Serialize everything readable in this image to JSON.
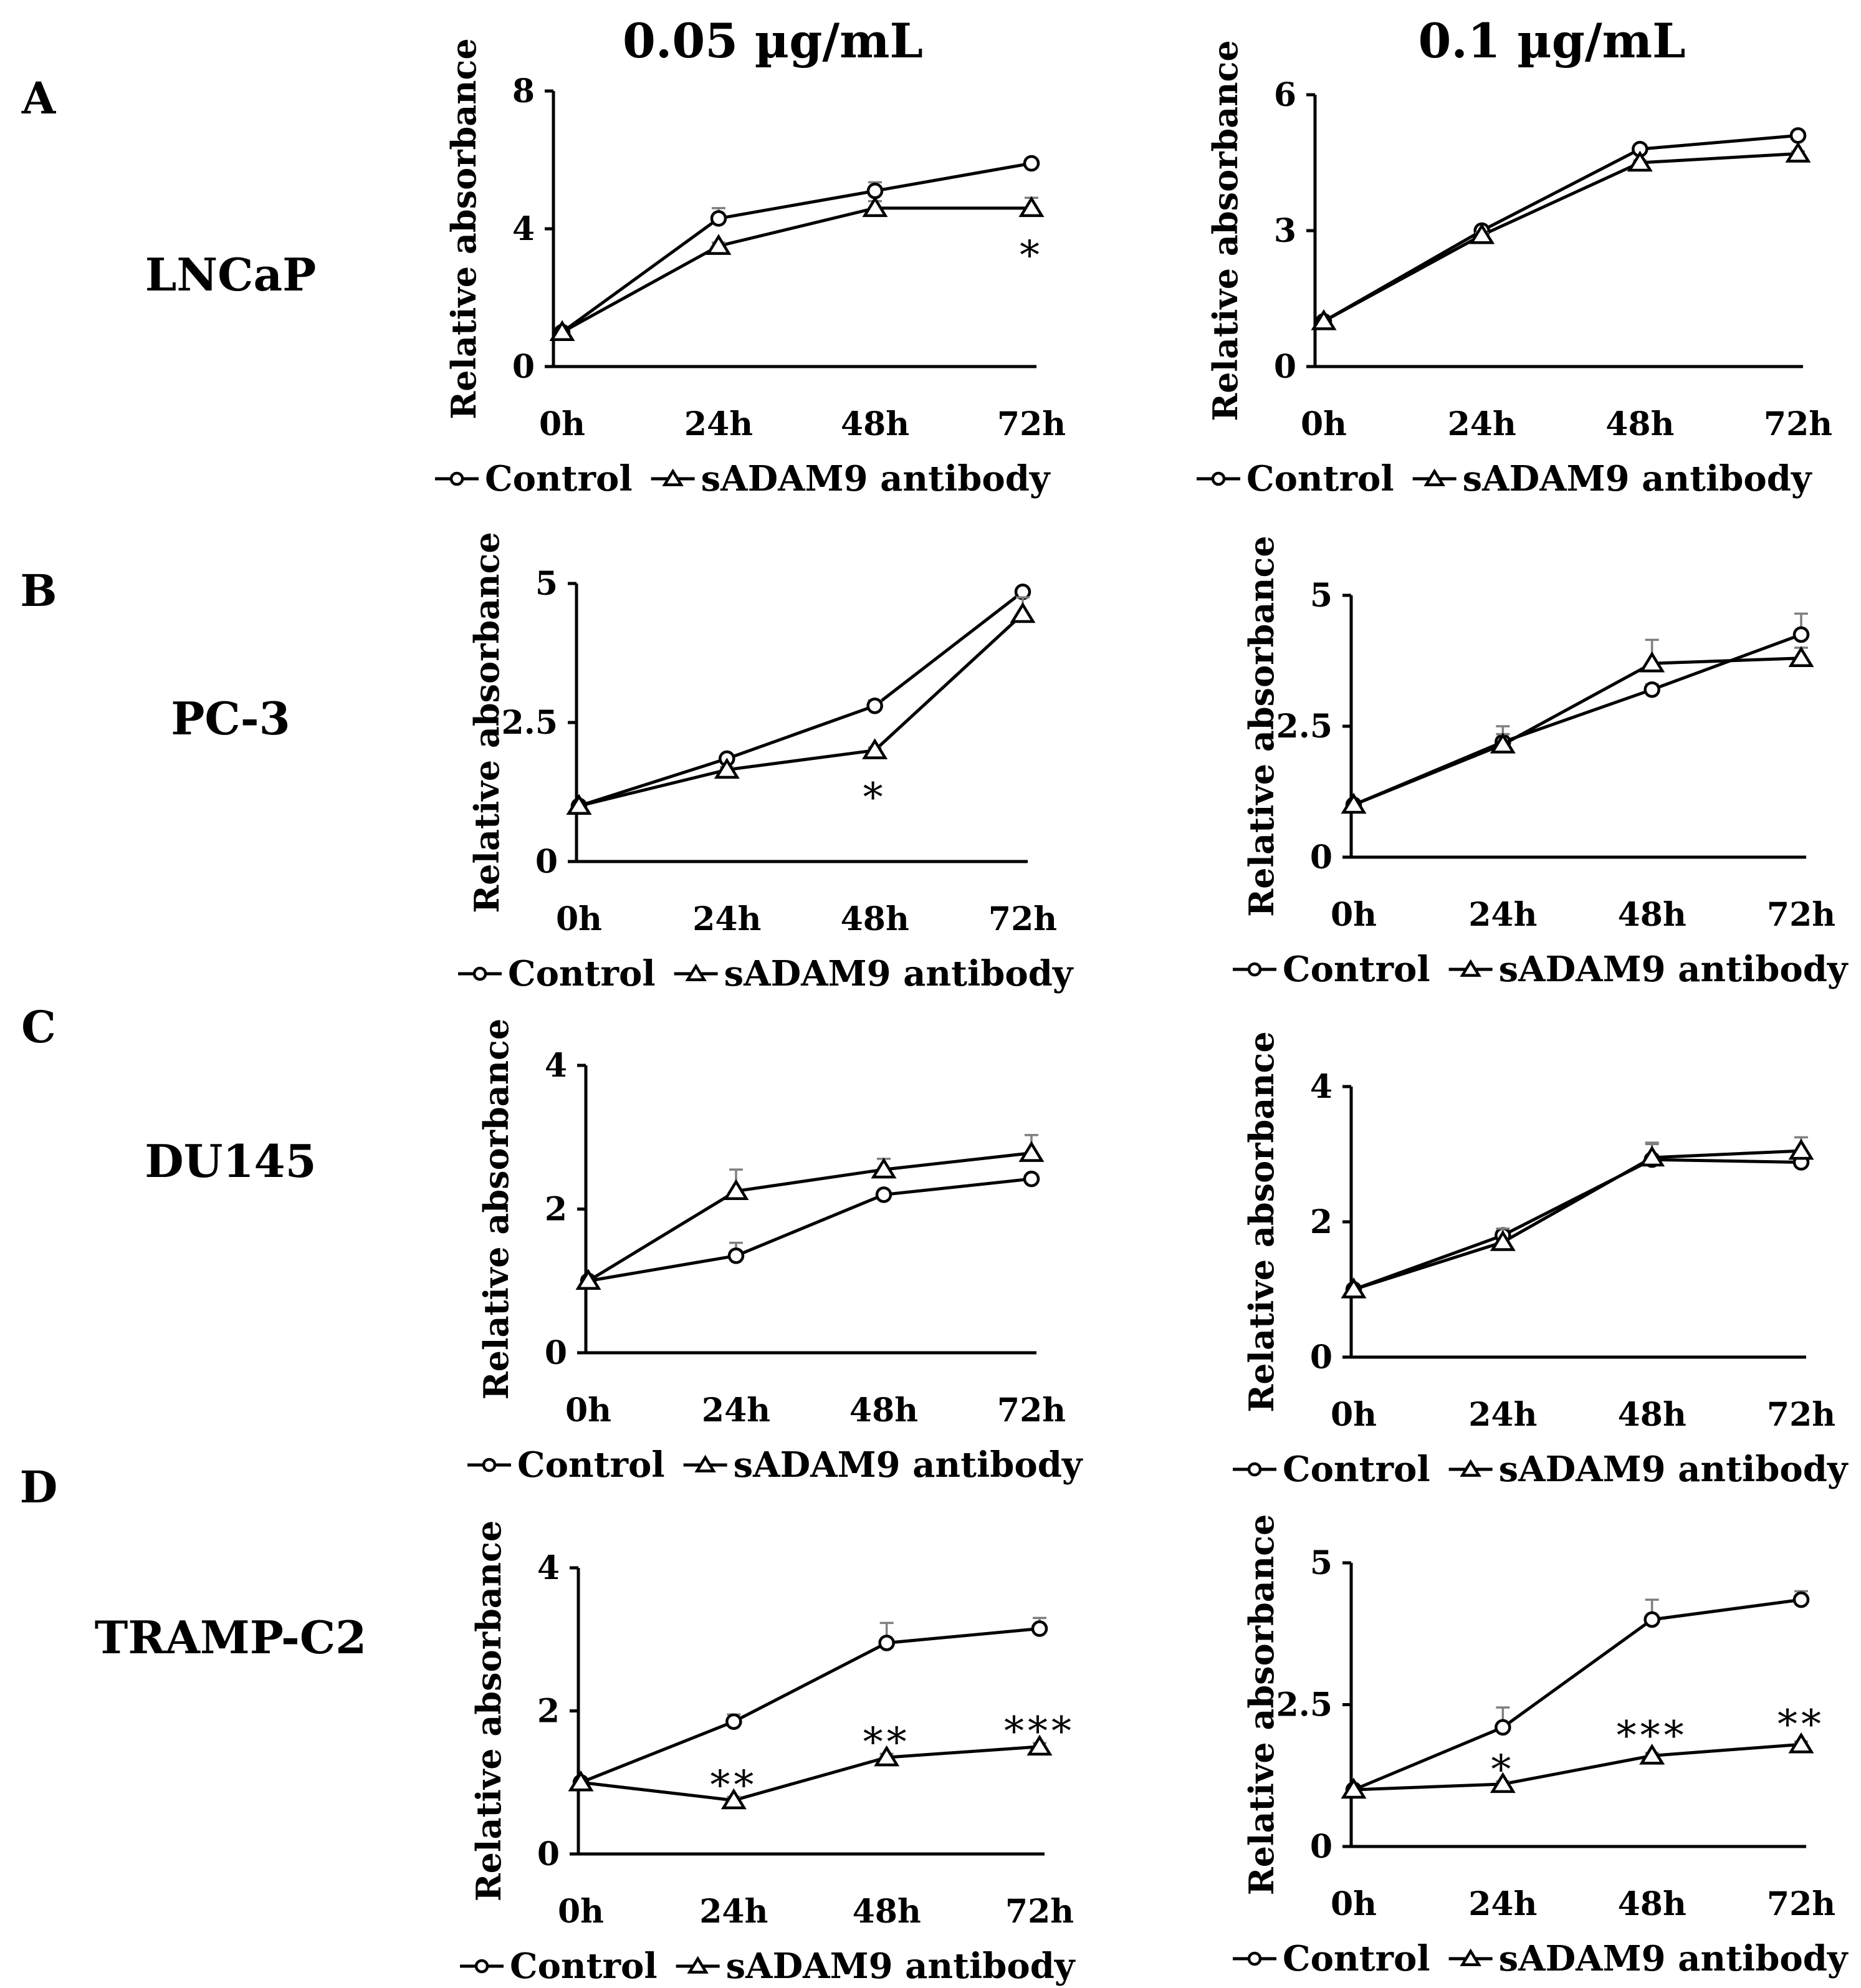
{
  "column_titles": [
    "0.05 µg/mL",
    "0.1 µg/mL"
  ],
  "rows": [
    {
      "letter": "A",
      "cell_line": "LNCaP"
    },
    {
      "letter": "B",
      "cell_line": "PC-3"
    },
    {
      "letter": "C",
      "cell_line": "DU145"
    },
    {
      "letter": "D",
      "cell_line": "TRAMP-C2"
    }
  ],
  "chart_data": [
    {
      "type": "line",
      "row": "A",
      "cell_line": "LNCaP",
      "concentration": "0.05 µg/mL",
      "categories": [
        "0h",
        "24h",
        "48h",
        "72h"
      ],
      "ylabel": "Relative absorbance",
      "ylim": [
        0,
        8
      ],
      "yticks": [
        0,
        4,
        8
      ],
      "ytick_labels": [
        "0",
        "4",
        "8"
      ],
      "series": [
        {
          "name": "Control",
          "marker": "circle",
          "values": [
            1.0,
            4.3,
            5.1,
            5.9
          ],
          "errors": [
            0,
            0.3,
            0.25,
            0.05
          ]
        },
        {
          "name": "sADAM9 antibody",
          "marker": "triangle",
          "values": [
            1.0,
            3.5,
            4.6,
            4.6
          ],
          "errors": [
            0,
            0.1,
            0.2,
            0.3
          ]
        }
      ],
      "annotations": [
        {
          "category": "72h",
          "text": "*",
          "y": 3.3
        }
      ]
    },
    {
      "type": "line",
      "row": "A",
      "cell_line": "LNCaP",
      "concentration": "0.1 µg/mL",
      "categories": [
        "0h",
        "24h",
        "48h",
        "72h"
      ],
      "ylabel": "Relative absorbance",
      "ylim": [
        0,
        6
      ],
      "yticks": [
        0,
        3,
        6
      ],
      "ytick_labels": [
        "0",
        "3",
        "6"
      ],
      "series": [
        {
          "name": "Control",
          "marker": "circle",
          "values": [
            1.0,
            3.0,
            4.8,
            5.1
          ],
          "errors": [
            0,
            0.05,
            0.05,
            0.05
          ]
        },
        {
          "name": "sADAM9 antibody",
          "marker": "triangle",
          "values": [
            1.0,
            2.9,
            4.5,
            4.7
          ],
          "errors": [
            0,
            0.05,
            0.05,
            0.05
          ]
        }
      ],
      "annotations": []
    },
    {
      "type": "line",
      "row": "B",
      "cell_line": "PC-3",
      "concentration": "0.05 µg/mL",
      "categories": [
        "0h",
        "24h",
        "48h",
        "72h"
      ],
      "ylabel": "Relative absorbance",
      "ylim": [
        0,
        5
      ],
      "yticks": [
        0,
        2.5,
        5
      ],
      "ytick_labels": [
        "0",
        "2.5",
        "5"
      ],
      "series": [
        {
          "name": "Control",
          "marker": "circle",
          "values": [
            1.0,
            1.85,
            2.8,
            4.85
          ],
          "errors": [
            0,
            0.05,
            0.1,
            0.05
          ]
        },
        {
          "name": "sADAM9 antibody",
          "marker": "triangle",
          "values": [
            1.0,
            1.65,
            2.0,
            4.45
          ],
          "errors": [
            0,
            0.05,
            0.05,
            0.3
          ]
        }
      ],
      "annotations": [
        {
          "category": "48h",
          "text": "*",
          "y": 1.2
        }
      ]
    },
    {
      "type": "line",
      "row": "B",
      "cell_line": "PC-3",
      "concentration": "0.1 µg/mL",
      "categories": [
        "0h",
        "24h",
        "48h",
        "72h"
      ],
      "ylabel": "Relative absorbance",
      "ylim": [
        0,
        5
      ],
      "yticks": [
        0,
        2.5,
        5
      ],
      "ytick_labels": [
        "0",
        "2.5",
        "5"
      ],
      "series": [
        {
          "name": "Control",
          "marker": "circle",
          "values": [
            1.0,
            2.2,
            3.2,
            4.25
          ],
          "errors": [
            0,
            0.3,
            0.1,
            0.4
          ]
        },
        {
          "name": "sADAM9 antibody",
          "marker": "triangle",
          "values": [
            1.0,
            2.15,
            3.7,
            3.8
          ],
          "errors": [
            0,
            0.2,
            0.45,
            0.2
          ]
        }
      ],
      "annotations": []
    },
    {
      "type": "line",
      "row": "C",
      "cell_line": "DU145",
      "concentration": "0.05 µg/mL",
      "categories": [
        "0h",
        "24h",
        "48h",
        "72h"
      ],
      "ylabel": "Relative absorbance",
      "ylim": [
        0,
        4
      ],
      "yticks": [
        0,
        2,
        4
      ],
      "ytick_labels": [
        "0",
        "2",
        "4"
      ],
      "series": [
        {
          "name": "Control",
          "marker": "circle",
          "values": [
            1.0,
            1.35,
            2.2,
            2.42
          ],
          "errors": [
            0,
            0.18,
            0.05,
            0.05
          ]
        },
        {
          "name": "sADAM9 antibody",
          "marker": "triangle",
          "values": [
            1.0,
            2.25,
            2.55,
            2.78
          ],
          "errors": [
            0,
            0.3,
            0.15,
            0.25
          ]
        }
      ],
      "annotations": []
    },
    {
      "type": "line",
      "row": "C",
      "cell_line": "DU145",
      "concentration": "0.1 µg/mL",
      "categories": [
        "0h",
        "24h",
        "48h",
        "72h"
      ],
      "ylabel": "Relative absorbance",
      "ylim": [
        0,
        4
      ],
      "yticks": [
        0,
        2,
        4
      ],
      "ytick_labels": [
        "0",
        "2",
        "4"
      ],
      "series": [
        {
          "name": "Control",
          "marker": "circle",
          "values": [
            1.0,
            1.8,
            2.92,
            2.88
          ],
          "errors": [
            0,
            0.05,
            0.25,
            0.1
          ]
        },
        {
          "name": "sADAM9 antibody",
          "marker": "triangle",
          "values": [
            1.0,
            1.7,
            2.95,
            3.05
          ],
          "errors": [
            0,
            0.2,
            0.2,
            0.2
          ]
        }
      ],
      "annotations": []
    },
    {
      "type": "line",
      "row": "D",
      "cell_line": "TRAMP-C2",
      "concentration": "0.05 µg/mL",
      "categories": [
        "0h",
        "24h",
        "48h",
        "72h"
      ],
      "ylabel": "Relative absorbance",
      "ylim": [
        0,
        4
      ],
      "yticks": [
        0,
        2,
        4
      ],
      "ytick_labels": [
        "0",
        "2",
        "4"
      ],
      "series": [
        {
          "name": "Control",
          "marker": "circle",
          "values": [
            1.0,
            1.85,
            2.95,
            3.15
          ],
          "errors": [
            0,
            0.1,
            0.28,
            0.15
          ]
        },
        {
          "name": "sADAM9 antibody",
          "marker": "triangle",
          "values": [
            1.0,
            0.75,
            1.35,
            1.5
          ],
          "errors": [
            0,
            0.05,
            0.05,
            0.05
          ]
        }
      ],
      "annotations": [
        {
          "category": "24h",
          "text": "**",
          "y": 1.0
        },
        {
          "category": "48h",
          "text": "**",
          "y": 1.6
        },
        {
          "category": "72h",
          "text": "***",
          "y": 1.75
        }
      ]
    },
    {
      "type": "line",
      "row": "D",
      "cell_line": "TRAMP-C2",
      "concentration": "0.1 µg/mL",
      "categories": [
        "0h",
        "24h",
        "48h",
        "72h"
      ],
      "ylabel": "Relative  absorbance",
      "ylim": [
        0,
        5
      ],
      "yticks": [
        0,
        2.5,
        5
      ],
      "ytick_labels": [
        "0",
        "2.5",
        "5"
      ],
      "series": [
        {
          "name": "Control",
          "marker": "circle",
          "values": [
            1.0,
            2.1,
            4.0,
            4.35
          ],
          "errors": [
            0,
            0.35,
            0.35,
            0.15
          ]
        },
        {
          "name": "sADAM9 antibody",
          "marker": "triangle",
          "values": [
            1.0,
            1.1,
            1.6,
            1.8
          ],
          "errors": [
            0,
            0.05,
            0.05,
            0.05
          ]
        }
      ],
      "annotations": [
        {
          "category": "24h",
          "text": "*",
          "y": 1.4
        },
        {
          "category": "48h",
          "text": "***",
          "y": 2.0
        },
        {
          "category": "72h",
          "text": "**",
          "y": 2.2
        }
      ]
    }
  ]
}
